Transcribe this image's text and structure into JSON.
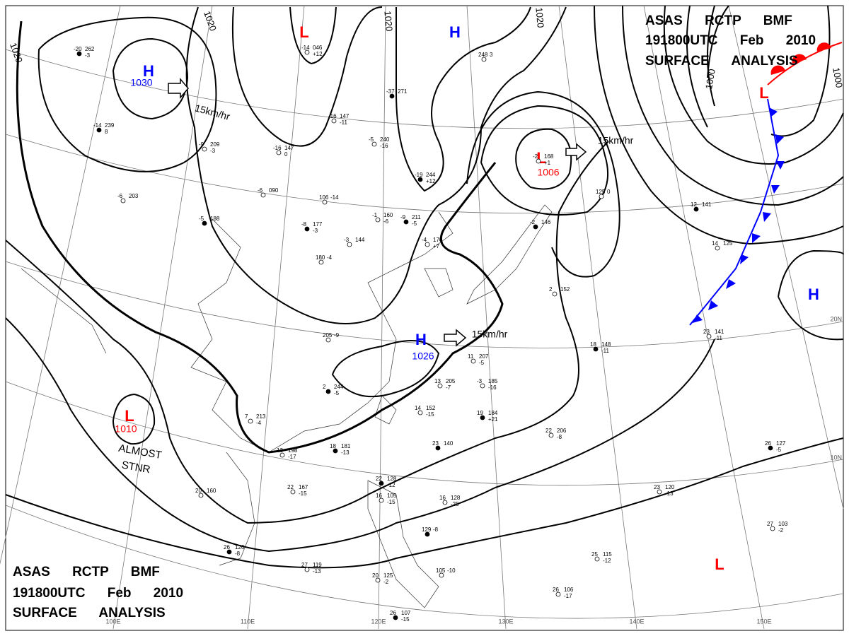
{
  "header": {
    "lines": [
      "ASAS RCTP BMF",
      "191800UTC Feb 2010",
      "SURFACE ANALYSIS"
    ]
  },
  "centers": [
    {
      "symbol": "H",
      "pressure": "1030"
    },
    {
      "symbol": "L"
    },
    {
      "symbol": "H"
    },
    {
      "symbol": "L",
      "pressure": "1006"
    },
    {
      "symbol": "L"
    },
    {
      "symbol": "H"
    },
    {
      "symbol": "H",
      "pressure": "1026"
    },
    {
      "symbol": "L",
      "pressure": "1010"
    },
    {
      "symbol": "L"
    }
  ],
  "isobar_labels": [
    "1020",
    "1020",
    "1020",
    "1020",
    "1000",
    "1000"
  ],
  "motion_labels": [
    "15km/hr",
    "15km/hr",
    "15km/hr"
  ],
  "annotation": {
    "lines": [
      "ALMOST",
      "STNR"
    ]
  },
  "longitude_labels": [
    "100E",
    "110E",
    "120E",
    "130E",
    "140E",
    "150E"
  ],
  "latitude_labels": [
    "20N",
    "10N"
  ],
  "stations": [
    [
      "-20",
      "262",
      "-3"
    ],
    [
      "-14",
      "046",
      "+12"
    ],
    [
      "248",
      "3"
    ],
    [
      "-14",
      "239",
      "8"
    ],
    [
      "-9",
      "209",
      "-3"
    ],
    [
      "-16",
      "147",
      "0"
    ],
    [
      "-37",
      "271"
    ],
    [
      "-16",
      "147",
      "-11"
    ],
    [
      "-5",
      "240",
      "-16"
    ],
    [
      "-19",
      "244",
      "+12"
    ],
    [
      "-6",
      "090"
    ],
    [
      "106",
      "-14"
    ],
    [
      "-8",
      "177",
      "-3"
    ],
    [
      "-3",
      "144"
    ],
    [
      "180",
      "-4"
    ],
    [
      "-5",
      "188"
    ],
    [
      "-6",
      "203"
    ],
    [
      "-1",
      "160",
      "-6"
    ],
    [
      "-9",
      "211",
      "-5"
    ],
    [
      "-4",
      "170",
      "+7"
    ],
    [
      "-2",
      "168",
      "+1"
    ],
    [
      "-2",
      "146"
    ],
    [
      "125",
      "0"
    ],
    [
      "2",
      "152"
    ],
    [
      "12",
      "141"
    ],
    [
      "14",
      "125"
    ],
    [
      "23",
      "141",
      "-11"
    ],
    [
      "18",
      "148",
      "-11"
    ],
    [
      "205",
      "-9"
    ],
    [
      "11",
      "207",
      "-5"
    ],
    [
      "2",
      "244",
      "-5"
    ],
    [
      "13",
      "205",
      "-7"
    ],
    [
      "-3",
      "185",
      "-16"
    ],
    [
      "19",
      "184",
      "+21"
    ],
    [
      "7",
      "213",
      "-4"
    ],
    [
      "13",
      "198",
      "-17"
    ],
    [
      "18",
      "181",
      "-13"
    ],
    [
      "14",
      "152",
      "-15"
    ],
    [
      "22",
      "206",
      "-8"
    ],
    [
      "23",
      "140"
    ],
    [
      "22",
      "167",
      "-15"
    ],
    [
      "20",
      "160"
    ],
    [
      "22",
      "128",
      "-12"
    ],
    [
      "16",
      "105",
      "-15"
    ],
    [
      "16",
      "128",
      "-25"
    ],
    [
      "26",
      "127",
      "-5"
    ],
    [
      "23",
      "120",
      "-13"
    ],
    [
      "27",
      "103",
      "-2"
    ],
    [
      "26",
      "126",
      "-8"
    ],
    [
      "27",
      "119",
      "-13"
    ],
    [
      "20",
      "125",
      "-2"
    ],
    [
      "26",
      "107",
      "-15"
    ],
    [
      "25",
      "115",
      "-12"
    ],
    [
      "26",
      "106",
      "-17"
    ],
    [
      "129",
      "-8"
    ],
    [
      "105",
      "-10"
    ]
  ]
}
